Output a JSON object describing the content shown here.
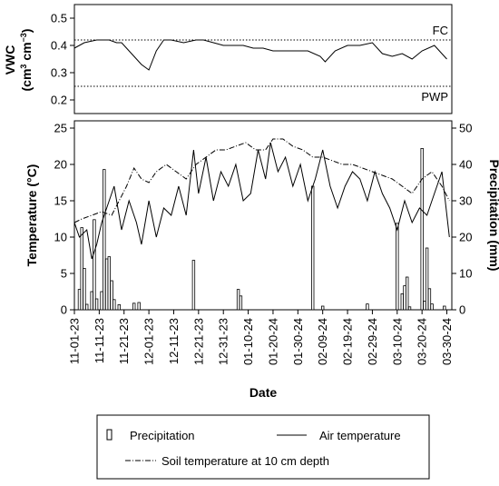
{
  "chart_data": [
    {
      "panel": "top",
      "type": "line",
      "ylabel_line1": "VWC",
      "ylabel_line2_base": "(cm",
      "ylabel_line2_exp1": "3",
      "ylabel_line2_mid": " cm",
      "ylabel_line2_exp2": "−3",
      "ylabel_line2_end": ")",
      "ylim": [
        0.15,
        0.55
      ],
      "yticks": [
        0.2,
        0.3,
        0.4,
        0.5
      ],
      "ytick_labels": [
        "0.2",
        "0.3",
        "0.4",
        "0.5"
      ],
      "reference_lines": [
        {
          "label": "FC",
          "value": 0.42
        },
        {
          "label": "PWP",
          "value": 0.25
        }
      ],
      "series": [
        {
          "style": "solid",
          "x": [
            "2023-11-01",
            "2023-11-05",
            "2023-11-10",
            "2023-11-15",
            "2023-11-18",
            "2023-11-20",
            "2023-11-25",
            "2023-11-28",
            "2023-12-01",
            "2023-12-04",
            "2023-12-07",
            "2023-12-10",
            "2023-12-15",
            "2023-12-20",
            "2023-12-23",
            "2023-12-27",
            "2023-12-31",
            "2024-01-04",
            "2024-01-08",
            "2024-01-12",
            "2024-01-16",
            "2024-01-20",
            "2024-01-25",
            "2024-01-30",
            "2024-02-03",
            "2024-02-08",
            "2024-02-10",
            "2024-02-14",
            "2024-02-19",
            "2024-02-24",
            "2024-02-29",
            "2024-03-04",
            "2024-03-08",
            "2024-03-12",
            "2024-03-16",
            "2024-03-20",
            "2024-03-25",
            "2024-03-30"
          ],
          "y": [
            0.39,
            0.41,
            0.42,
            0.42,
            0.41,
            0.41,
            0.36,
            0.33,
            0.31,
            0.38,
            0.42,
            0.42,
            0.41,
            0.42,
            0.42,
            0.41,
            0.4,
            0.4,
            0.4,
            0.39,
            0.39,
            0.38,
            0.38,
            0.38,
            0.38,
            0.36,
            0.34,
            0.38,
            0.4,
            0.4,
            0.41,
            0.37,
            0.36,
            0.37,
            0.35,
            0.38,
            0.4,
            0.35
          ]
        }
      ]
    },
    {
      "panel": "bottom",
      "type": "bar+line",
      "xlabel": "Date",
      "ylabel": "Temperature (°C)",
      "y2label": "Precipitation (mm)",
      "ylim": [
        0,
        26
      ],
      "y2lim": [
        0,
        52
      ],
      "yticks": [
        "0",
        "5",
        "10",
        "15",
        "20",
        "25"
      ],
      "y2ticks": [
        "0",
        "10",
        "20",
        "30",
        "40",
        "50"
      ],
      "x_tick_labels": [
        "11-01-23",
        "11-11-23",
        "11-21-23",
        "12-01-23",
        "12-11-23",
        "12-21-23",
        "12-31-23",
        "01-10-24",
        "01-20-24",
        "01-30-24",
        "02-09-24",
        "02-19-24",
        "02-29-24",
        "03-10-24",
        "03-20-24",
        "03-30-24"
      ],
      "x_range": [
        "2023-11-01",
        "2024-04-01"
      ],
      "series": [
        {
          "name": "Air temperature",
          "type": "line",
          "style": "solid",
          "x": [
            "2023-11-01",
            "2023-11-03",
            "2023-11-06",
            "2023-11-08",
            "2023-11-10",
            "2023-11-12",
            "2023-11-14",
            "2023-11-17",
            "2023-11-20",
            "2023-11-23",
            "2023-11-26",
            "2023-11-28",
            "2023-12-01",
            "2023-12-04",
            "2023-12-07",
            "2023-12-10",
            "2023-12-13",
            "2023-12-16",
            "2023-12-19",
            "2023-12-21",
            "2023-12-24",
            "2023-12-27",
            "2023-12-30",
            "2024-01-02",
            "2024-01-05",
            "2024-01-08",
            "2024-01-11",
            "2024-01-14",
            "2024-01-17",
            "2024-01-19",
            "2024-01-22",
            "2024-01-25",
            "2024-01-28",
            "2024-01-31",
            "2024-02-03",
            "2024-02-06",
            "2024-02-09",
            "2024-02-12",
            "2024-02-15",
            "2024-02-18",
            "2024-02-21",
            "2024-02-24",
            "2024-02-27",
            "2024-03-01",
            "2024-03-04",
            "2024-03-07",
            "2024-03-10",
            "2024-03-13",
            "2024-03-16",
            "2024-03-19",
            "2024-03-22",
            "2024-03-25",
            "2024-03-28",
            "2024-03-31"
          ],
          "y": [
            12,
            10,
            11,
            7,
            9,
            12,
            14,
            17,
            11,
            15,
            12,
            9,
            15,
            10,
            14,
            13,
            17,
            13,
            22,
            16,
            21,
            15,
            19,
            17,
            20,
            15,
            16,
            22,
            18,
            23,
            19,
            21,
            17,
            20,
            15,
            18,
            22,
            17,
            14,
            17,
            19,
            18,
            15,
            19,
            16,
            14,
            11,
            15,
            12,
            14,
            13,
            16,
            19,
            10
          ]
        },
        {
          "name": "Soil temperature at 10 cm depth",
          "type": "line",
          "style": "dashdot",
          "x": [
            "2023-11-01",
            "2023-11-04",
            "2023-11-08",
            "2023-11-12",
            "2023-11-16",
            "2023-11-19",
            "2023-11-22",
            "2023-11-25",
            "2023-11-28",
            "2023-12-01",
            "2023-12-04",
            "2023-12-08",
            "2023-12-12",
            "2023-12-16",
            "2023-12-20",
            "2023-12-24",
            "2023-12-28",
            "2024-01-01",
            "2024-01-05",
            "2024-01-09",
            "2024-01-13",
            "2024-01-17",
            "2024-01-20",
            "2024-01-24",
            "2024-01-28",
            "2024-02-01",
            "2024-02-05",
            "2024-02-09",
            "2024-02-13",
            "2024-02-17",
            "2024-02-21",
            "2024-02-25",
            "2024-02-29",
            "2024-03-04",
            "2024-03-08",
            "2024-03-12",
            "2024-03-16",
            "2024-03-20",
            "2024-03-24",
            "2024-03-28",
            "2024-03-31"
          ],
          "y": [
            12,
            12.5,
            13,
            13.5,
            13,
            15,
            17,
            19.5,
            18,
            17.5,
            19,
            20,
            19,
            18,
            20,
            21,
            22,
            22,
            22.5,
            23,
            22,
            22,
            23.5,
            23.5,
            22.5,
            22,
            21,
            21,
            20.5,
            20,
            20,
            19.5,
            19,
            18.5,
            18,
            17,
            16,
            18,
            19,
            17,
            15
          ]
        },
        {
          "name": "Precipitation",
          "type": "bar",
          "axis": "right",
          "x": [
            "2023-11-03",
            "2023-11-04",
            "2023-11-05",
            "2023-11-06",
            "2023-11-08",
            "2023-11-09",
            "2023-11-10",
            "2023-11-12",
            "2023-11-13",
            "2023-11-14",
            "2023-11-15",
            "2023-11-16",
            "2023-11-17",
            "2023-11-19",
            "2023-11-25",
            "2023-11-27",
            "2023-12-19",
            "2024-01-06",
            "2024-01-07",
            "2024-02-05",
            "2024-02-09",
            "2024-02-27",
            "2024-03-10",
            "2024-03-12",
            "2024-03-13",
            "2024-03-14",
            "2024-03-15",
            "2024-03-20",
            "2024-03-21",
            "2024-03-22",
            "2024-03-23",
            "2024-03-24",
            "2024-03-29"
          ],
          "y": [
            5.6,
            22.6,
            11.4,
            1.5,
            5,
            24.8,
            3,
            5,
            38.6,
            14,
            14.6,
            8,
            2.8,
            1.4,
            1.8,
            2,
            13.6,
            5.6,
            3.8,
            34,
            1,
            1.6,
            23.8,
            4.4,
            6.6,
            9,
            0.8,
            44.4,
            2.4,
            17,
            5.8,
            1.6,
            1
          ]
        }
      ]
    }
  ],
  "legend": {
    "precipitation_label": "Precipitation",
    "air_label": "Air temperature",
    "soil_label": "Soil temperature at 10 cm depth"
  }
}
